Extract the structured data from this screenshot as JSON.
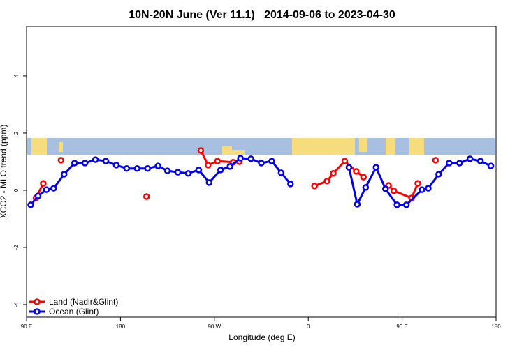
{
  "chart_data": {
    "type": "line",
    "title": "10N-20N June (Ver 11.1)   2014-09-06 to 2023-04-30",
    "xlabel": "Longitude (deg E)",
    "ylabel": "XCO2 - MLO trend (ppm)",
    "xlim": [
      90,
      540
    ],
    "xticks": [
      {
        "value": 90,
        "label": "90 E"
      },
      {
        "value": 180,
        "label": "180"
      },
      {
        "value": 270,
        "label": "90 W"
      },
      {
        "value": 360,
        "label": "0"
      },
      {
        "value": 450,
        "label": "90 E"
      },
      {
        "value": 540,
        "label": "180"
      }
    ],
    "ylim": [
      -4.44,
      5.73
    ],
    "yticks": [
      -4,
      -2,
      0,
      2,
      4
    ],
    "legend": "bottom-left",
    "series": [
      {
        "name": "Land (Nadir&Glint)",
        "color": "#ff0000",
        "x": [
          99,
          106,
          115,
          123,
          160,
          205,
          230,
          257,
          264,
          273,
          288,
          294,
          330,
          366,
          378,
          384,
          395,
          406,
          413,
          425,
          437,
          442,
          459,
          465,
          474,
          482
        ],
        "values": [
          -0.27,
          0.24,
          null,
          1.05,
          null,
          -0.22,
          null,
          1.39,
          0.88,
          1.02,
          0.98,
          1.0,
          null,
          0.15,
          0.32,
          0.59,
          1.02,
          0.66,
          0.46,
          null,
          0.17,
          -0.02,
          -0.27,
          0.24,
          null,
          1.05
        ]
      },
      {
        "name": "Ocean (Glint)",
        "color": "#0000ee",
        "x": [
          94,
          101,
          109,
          116,
          126,
          136,
          146,
          156,
          166,
          176,
          186,
          196,
          206,
          216,
          225,
          235,
          245,
          255,
          265,
          276,
          285,
          295,
          305,
          315,
          325,
          334,
          343,
          370,
          399,
          407,
          415,
          425,
          434,
          445,
          454,
          469,
          475,
          485,
          495,
          505,
          515,
          525,
          535
        ],
        "values": [
          -0.51,
          -0.2,
          0.02,
          0.07,
          0.56,
          0.95,
          0.95,
          1.07,
          1.02,
          0.88,
          0.76,
          0.76,
          0.76,
          0.85,
          0.68,
          0.63,
          0.59,
          0.71,
          0.27,
          0.71,
          0.83,
          1.12,
          1.1,
          0.95,
          1.02,
          0.61,
          0.22,
          null,
          0.8,
          -0.49,
          0.1,
          0.8,
          0.05,
          -0.51,
          -0.51,
          0.02,
          0.07,
          0.56,
          0.95,
          0.95,
          1.1,
          1.02,
          0.85
        ]
      }
    ]
  }
}
